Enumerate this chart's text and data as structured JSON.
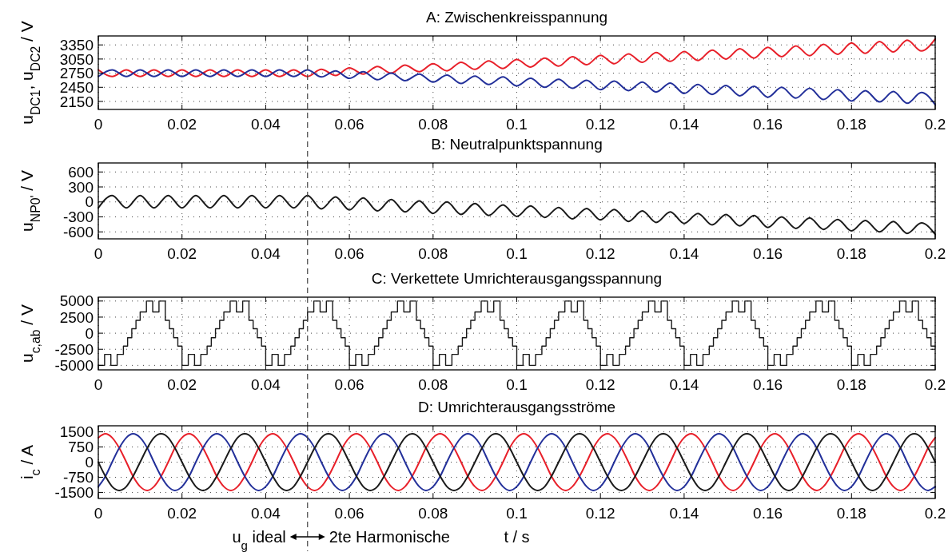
{
  "chart_data": [
    {
      "type": "line",
      "title": "A: Zwischenkreisspannung",
      "ylabel": "u$_{DC1}$, u$_{DC2}$ / V",
      "xlim": [
        0,
        0.2
      ],
      "xticks": [
        0,
        0.02,
        0.04,
        0.06,
        0.08,
        0.1,
        0.12,
        0.14,
        0.16,
        0.18,
        0.2
      ],
      "ylim": [
        1980,
        3540
      ],
      "yticks": [
        2150,
        2450,
        2750,
        3050,
        3350
      ],
      "grid": true,
      "x": [
        0,
        0.0033,
        0.0067,
        0.01,
        0.0133,
        0.0167,
        0.02,
        0.0233,
        0.0267,
        0.03,
        0.0333,
        0.0367,
        0.04,
        0.0433,
        0.0467,
        0.05,
        0.0533,
        0.0567,
        0.06,
        0.0633,
        0.0667,
        0.07,
        0.0733,
        0.0767,
        0.08,
        0.0833,
        0.0867,
        0.09,
        0.0933,
        0.0967,
        0.1,
        0.1033,
        0.1067,
        0.11,
        0.1133,
        0.1167,
        0.12,
        0.1233,
        0.1267,
        0.13,
        0.1333,
        0.1367,
        0.14,
        0.1433,
        0.1467,
        0.15,
        0.1533,
        0.1567,
        0.16,
        0.1633,
        0.1667,
        0.17,
        0.1733,
        0.1767,
        0.18,
        0.1833,
        0.1867,
        0.19,
        0.1933,
        0.1967,
        0.2
      ],
      "series": [
        {
          "color": "#e8202a",
          "values": [
            2820,
            2680,
            2820,
            2680,
            2820,
            2680,
            2820,
            2680,
            2820,
            2680,
            2820,
            2680,
            2820,
            2680,
            2820,
            2680,
            2830,
            2700,
            2860,
            2730,
            2890,
            2750,
            2920,
            2780,
            2950,
            2800,
            2980,
            2830,
            3010,
            2850,
            3040,
            2880,
            3070,
            2900,
            3100,
            2930,
            3130,
            2950,
            3160,
            2980,
            3190,
            3000,
            3210,
            3020,
            3240,
            3050,
            3270,
            3070,
            3300,
            3100,
            3330,
            3120,
            3360,
            3150,
            3390,
            3170,
            3420,
            3200,
            3450,
            3220,
            3480
          ]
        },
        {
          "color": "#23309a",
          "values": [
            2680,
            2820,
            2680,
            2820,
            2680,
            2820,
            2680,
            2820,
            2680,
            2820,
            2680,
            2820,
            2680,
            2820,
            2680,
            2820,
            2670,
            2800,
            2640,
            2780,
            2610,
            2750,
            2590,
            2730,
            2560,
            2710,
            2530,
            2690,
            2510,
            2670,
            2480,
            2640,
            2450,
            2620,
            2430,
            2600,
            2400,
            2580,
            2380,
            2560,
            2350,
            2540,
            2320,
            2510,
            2300,
            2490,
            2270,
            2470,
            2240,
            2450,
            2220,
            2430,
            2190,
            2400,
            2160,
            2380,
            2140,
            2360,
            2110,
            2340,
            2080
          ]
        }
      ],
      "ref_lines": [
        {
          "axis": "x",
          "value": 0.05,
          "color": "#444444",
          "line_style": "dashed"
        }
      ]
    },
    {
      "type": "line",
      "title": "B: Neutralpunktspannung",
      "ylabel": "u$_{NP0'}$ / V",
      "xlim": [
        0,
        0.2
      ],
      "xticks": [
        0,
        0.02,
        0.04,
        0.06,
        0.08,
        0.1,
        0.12,
        0.14,
        0.16,
        0.18,
        0.2
      ],
      "ylim": [
        -740,
        780
      ],
      "yticks": [
        -600,
        -300,
        0,
        300,
        600
      ],
      "grid": true,
      "x": [
        0,
        0.0033,
        0.0067,
        0.01,
        0.0133,
        0.0167,
        0.02,
        0.0233,
        0.0267,
        0.03,
        0.0333,
        0.0367,
        0.04,
        0.0433,
        0.0467,
        0.05,
        0.0533,
        0.0567,
        0.06,
        0.0633,
        0.0667,
        0.07,
        0.0733,
        0.0767,
        0.08,
        0.0833,
        0.0867,
        0.09,
        0.0933,
        0.0967,
        0.1,
        0.1033,
        0.1067,
        0.11,
        0.1133,
        0.1167,
        0.12,
        0.1233,
        0.1267,
        0.13,
        0.1333,
        0.1367,
        0.14,
        0.1433,
        0.1467,
        0.15,
        0.1533,
        0.1567,
        0.16,
        0.1633,
        0.1667,
        0.17,
        0.1733,
        0.1767,
        0.18,
        0.1833,
        0.1867,
        0.19,
        0.1933,
        0.1967,
        0.2
      ],
      "series": [
        {
          "color": "#1a1a1a",
          "values": [
            -120,
            130,
            -120,
            130,
            -120,
            130,
            -120,
            130,
            -120,
            130,
            -120,
            130,
            -120,
            130,
            -120,
            130,
            -140,
            100,
            -160,
            80,
            -180,
            50,
            -200,
            20,
            -230,
            0,
            -250,
            -30,
            -270,
            -60,
            -290,
            -80,
            -310,
            -110,
            -340,
            -130,
            -360,
            -150,
            -390,
            -180,
            -410,
            -200,
            -430,
            -230,
            -460,
            -250,
            -480,
            -270,
            -510,
            -300,
            -530,
            -320,
            -550,
            -350,
            -580,
            -370,
            -600,
            -390,
            -630,
            -420,
            -650
          ]
        }
      ],
      "ref_lines": [
        {
          "axis": "x",
          "value": 0.05,
          "color": "#444444",
          "line_style": "dashed"
        }
      ]
    },
    {
      "type": "step",
      "title": "C: Verkettete Umrichterausgangsspannung",
      "ylabel": "u$_{c,ab}$ / V",
      "xlim": [
        0,
        0.2
      ],
      "xticks": [
        0,
        0.02,
        0.04,
        0.06,
        0.08,
        0.1,
        0.12,
        0.14,
        0.16,
        0.18,
        0.2
      ],
      "ylim": [
        -5700,
        5600
      ],
      "yticks": [
        -5000,
        -2500,
        0,
        2500,
        5000
      ],
      "grid": true,
      "x": [
        0,
        0.0015,
        0.003,
        0.0045,
        0.006,
        0.007,
        0.008,
        0.009,
        0.01,
        0.0115,
        0.013,
        0.0145,
        0.016,
        0.017,
        0.018,
        0.019,
        0.02,
        0.0215,
        0.023,
        0.0245,
        0.026,
        0.027,
        0.028,
        0.029,
        0.03,
        0.0315,
        0.033,
        0.0345,
        0.036,
        0.037,
        0.038,
        0.039,
        0.04,
        0.0415,
        0.043,
        0.0445,
        0.046,
        0.047,
        0.048,
        0.049,
        0.05,
        0.0515,
        0.053,
        0.0545,
        0.056,
        0.057,
        0.058,
        0.059,
        0.06,
        0.0615,
        0.063,
        0.0645,
        0.066,
        0.067,
        0.068,
        0.069,
        0.07,
        0.0715,
        0.073,
        0.0745,
        0.076,
        0.077,
        0.078,
        0.079,
        0.08,
        0.0815,
        0.083,
        0.0845,
        0.086,
        0.087,
        0.088,
        0.089,
        0.09,
        0.0915,
        0.093,
        0.0945,
        0.096,
        0.097,
        0.098,
        0.099,
        0.1,
        0.1015,
        0.103,
        0.1045,
        0.106,
        0.107,
        0.108,
        0.109,
        0.11,
        0.1115,
        0.113,
        0.1145,
        0.116,
        0.117,
        0.118,
        0.119,
        0.12,
        0.1215,
        0.123,
        0.1245,
        0.126,
        0.127,
        0.128,
        0.129,
        0.13,
        0.1315,
        0.133,
        0.1345,
        0.136,
        0.137,
        0.138,
        0.139,
        0.14,
        0.1415,
        0.143,
        0.1445,
        0.146,
        0.147,
        0.148,
        0.149,
        0.15,
        0.1515,
        0.153,
        0.1545,
        0.156,
        0.157,
        0.158,
        0.159,
        0.16,
        0.1615,
        0.163,
        0.1645,
        0.166,
        0.167,
        0.168,
        0.169,
        0.17,
        0.1715,
        0.173,
        0.1745,
        0.176,
        0.177,
        0.178,
        0.179,
        0.18,
        0.1815,
        0.183,
        0.1845,
        0.186,
        0.187,
        0.188,
        0.189,
        0.19,
        0.1915,
        0.193,
        0.1945,
        0.196,
        0.197,
        0.198,
        0.199,
        0.2
      ],
      "series": [
        {
          "color": "#1a1a1a",
          "values": [
            -5000,
            -3300,
            -5000,
            -3300,
            -2000,
            -700,
            700,
            2000,
            3300,
            5000,
            3300,
            5000,
            2000,
            700,
            -700,
            -2000,
            -5000,
            -3300,
            -5000,
            -3300,
            -2000,
            -700,
            700,
            2000,
            3300,
            5000,
            3300,
            5000,
            2000,
            700,
            -700,
            -2000,
            -5000,
            -3300,
            -5000,
            -3300,
            -2000,
            -700,
            700,
            2000,
            3300,
            5000,
            3300,
            5000,
            2000,
            700,
            -700,
            -2000,
            -5000,
            -3300,
            -5000,
            -3300,
            -2000,
            -700,
            700,
            2000,
            3300,
            5000,
            3300,
            5000,
            2000,
            700,
            -700,
            -2000,
            -5000,
            -3300,
            -5000,
            -3300,
            -2000,
            -700,
            700,
            2000,
            3300,
            5000,
            3300,
            5000,
            2000,
            700,
            -700,
            -2000,
            -5000,
            -3300,
            -5000,
            -3300,
            -2000,
            -700,
            700,
            2000,
            3300,
            5000,
            3300,
            5000,
            2000,
            700,
            -700,
            -2000,
            -5000,
            -3300,
            -5000,
            -3300,
            -2000,
            -700,
            700,
            2000,
            3300,
            5000,
            3300,
            5000,
            2000,
            700,
            -700,
            -2000,
            -5000,
            -3300,
            -5000,
            -3300,
            -2000,
            -700,
            700,
            2000,
            3300,
            5000,
            3300,
            5000,
            2000,
            700,
            -700,
            -2000,
            -5000,
            -3300,
            -5000,
            -3300,
            -2000,
            -700,
            700,
            2000,
            3300,
            5000,
            3300,
            5000,
            2000,
            700,
            -700,
            -2000,
            -5000,
            -3300,
            -5000,
            -3300,
            -2000,
            -700,
            700,
            2000,
            3300,
            5000,
            3300,
            5000,
            2000,
            700,
            -700,
            -2000,
            -2000
          ]
        }
      ],
      "ref_lines": [
        {
          "axis": "x",
          "value": 0.05,
          "color": "#444444",
          "line_style": "dashed"
        }
      ]
    },
    {
      "type": "line",
      "title": "D: Umrichterausgangsströme",
      "xlabel": "t / s",
      "ylabel": "i$_{c}$ / A",
      "xlim": [
        0,
        0.2
      ],
      "xticks": [
        0,
        0.02,
        0.04,
        0.06,
        0.08,
        0.1,
        0.12,
        0.14,
        0.16,
        0.18,
        0.2
      ],
      "ylim": [
        -1800,
        1800
      ],
      "yticks": [
        -1500,
        -750,
        0,
        750,
        1500
      ],
      "grid": true,
      "x": [
        0,
        0.0017,
        0.0033,
        0.005,
        0.0067,
        0.0083,
        0.01,
        0.0117,
        0.0133,
        0.015,
        0.0167,
        0.0183,
        0.02,
        0.0217,
        0.0233,
        0.025,
        0.0267,
        0.0283,
        0.03,
        0.0317,
        0.0333,
        0.035,
        0.0367,
        0.0383,
        0.04,
        0.0417,
        0.0433,
        0.045,
        0.0467,
        0.0483,
        0.05,
        0.0517,
        0.0533,
        0.055,
        0.0567,
        0.0583,
        0.06,
        0.0617,
        0.0633,
        0.065,
        0.0667,
        0.0683,
        0.07,
        0.0717,
        0.0733,
        0.075,
        0.0767,
        0.0783,
        0.08,
        0.0817,
        0.0833,
        0.085,
        0.0867,
        0.0883,
        0.09,
        0.0917,
        0.0933,
        0.095,
        0.0967,
        0.0983,
        0.1,
        0.1017,
        0.1033,
        0.105,
        0.1067,
        0.1083,
        0.11,
        0.1117,
        0.1133,
        0.115,
        0.1167,
        0.1183,
        0.12,
        0.1217,
        0.1233,
        0.125,
        0.1267,
        0.1283,
        0.13,
        0.1317,
        0.1333,
        0.135,
        0.1367,
        0.1383,
        0.14,
        0.1417,
        0.1433,
        0.145,
        0.1467,
        0.1483,
        0.15,
        0.1517,
        0.1533,
        0.155,
        0.1567,
        0.1583,
        0.16,
        0.1617,
        0.1633,
        0.165,
        0.1667,
        0.1683,
        0.17,
        0.1717,
        0.1733,
        0.175,
        0.1767,
        0.1783,
        0.18,
        0.1817,
        0.1833,
        0.185,
        0.1867,
        0.1883,
        0.19,
        0.1917,
        0.1933,
        0.195,
        0.1967,
        0.1983,
        0.2
      ],
      "series": [
        {
          "color": "#e8202a",
          "values": [
            1210,
            1400,
            1210,
            700,
            0,
            -700,
            -1210,
            -1400,
            -1210,
            -700,
            0,
            700,
            1210,
            1400,
            1210,
            700,
            0,
            -700,
            -1210,
            -1400,
            -1210,
            -700,
            0,
            700,
            1210,
            1400,
            1210,
            700,
            0,
            -700,
            -1210,
            -1400,
            -1210,
            -700,
            0,
            700,
            1210,
            1400,
            1210,
            700,
            0,
            -700,
            -1210,
            -1400,
            -1210,
            -700,
            0,
            700,
            1210,
            1400,
            1210,
            700,
            0,
            -700,
            -1210,
            -1400,
            -1210,
            -700,
            0,
            700,
            1210,
            1400,
            1210,
            700,
            0,
            -700,
            -1210,
            -1400,
            -1210,
            -700,
            0,
            700,
            1210,
            1400,
            1210,
            700,
            0,
            -700,
            -1210,
            -1400,
            -1210,
            -700,
            0,
            700,
            1210,
            1400,
            1210,
            700,
            0,
            -700,
            -1210,
            -1400,
            -1210,
            -700,
            0,
            700,
            1210,
            1400,
            1210,
            700,
            0,
            -700,
            -1210,
            -1400,
            -1210,
            -700,
            0,
            700,
            1210,
            1400,
            1210,
            700,
            0,
            -700,
            -1210,
            -1400,
            -1210,
            -700,
            0,
            700,
            1210
          ]
        },
        {
          "color": "#23309a",
          "values": [
            -1210,
            -700,
            0,
            700,
            1210,
            1400,
            1210,
            700,
            0,
            -700,
            -1210,
            -1400,
            -1210,
            -700,
            0,
            700,
            1210,
            1400,
            1210,
            700,
            0,
            -700,
            -1210,
            -1400,
            -1210,
            -700,
            0,
            700,
            1210,
            1400,
            1210,
            700,
            0,
            -700,
            -1210,
            -1400,
            -1210,
            -700,
            0,
            700,
            1210,
            1400,
            1210,
            700,
            0,
            -700,
            -1210,
            -1400,
            -1210,
            -700,
            0,
            700,
            1210,
            1400,
            1210,
            700,
            0,
            -700,
            -1210,
            -1400,
            -1210,
            -700,
            0,
            700,
            1210,
            1400,
            1210,
            700,
            0,
            -700,
            -1210,
            -1400,
            -1210,
            -700,
            0,
            700,
            1210,
            1400,
            1210,
            700,
            0,
            -700,
            -1210,
            -1400,
            -1210,
            -700,
            0,
            700,
            1210,
            1400,
            1210,
            700,
            0,
            -700,
            -1210,
            -1400,
            -1210,
            -700,
            0,
            700,
            1210,
            1400,
            1210,
            700,
            0,
            -700,
            -1210,
            -1400,
            -1210,
            -700,
            0,
            700,
            1210,
            1400,
            1210,
            700,
            0,
            -700,
            -1210,
            -1400,
            -1210
          ]
        },
        {
          "color": "#1a1a1a",
          "values": [
            0,
            -700,
            -1210,
            -1400,
            -1210,
            -700,
            0,
            700,
            1210,
            1400,
            1210,
            700,
            0,
            -700,
            -1210,
            -1400,
            -1210,
            -700,
            0,
            700,
            1210,
            1400,
            1210,
            700,
            0,
            -700,
            -1210,
            -1400,
            -1210,
            -700,
            0,
            700,
            1210,
            1400,
            1210,
            700,
            0,
            -700,
            -1210,
            -1400,
            -1210,
            -700,
            0,
            700,
            1210,
            1400,
            1210,
            700,
            0,
            -700,
            -1210,
            -1400,
            -1210,
            -700,
            0,
            700,
            1210,
            1400,
            1210,
            700,
            0,
            -700,
            -1210,
            -1400,
            -1210,
            -700,
            0,
            700,
            1210,
            1400,
            1210,
            700,
            0,
            -700,
            -1210,
            -1400,
            -1210,
            -700,
            0,
            700,
            1210,
            1400,
            1210,
            700,
            0,
            -700,
            -1210,
            -1400,
            -1210,
            -700,
            0,
            700,
            1210,
            1400,
            1210,
            700,
            0,
            -700,
            -1210,
            -1400,
            -1210,
            -700,
            0,
            700,
            1210,
            1400,
            1210,
            700,
            0,
            -700,
            -1210,
            -1400,
            -1210,
            -700,
            0,
            700,
            1210,
            1400,
            1210,
            700,
            0
          ]
        }
      ],
      "ref_lines": [
        {
          "axis": "x",
          "value": 0.05,
          "color": "#444444",
          "line_style": "dashed"
        }
      ],
      "annotations": [
        "u$_{g}$ ideal",
        "2te Harmonische"
      ]
    }
  ]
}
